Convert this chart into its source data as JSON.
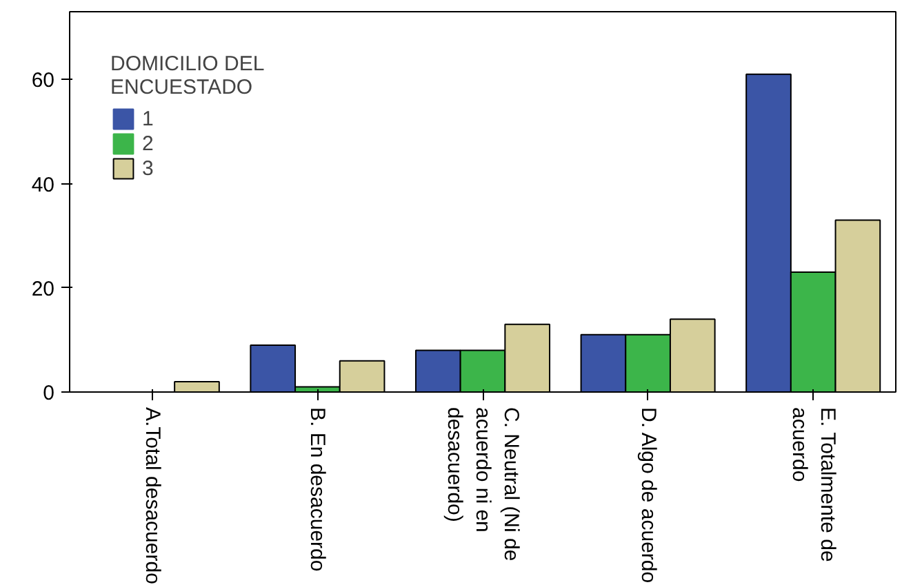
{
  "chart_data": {
    "type": "bar",
    "categories": [
      "A.Total desacuerdo",
      "B. En desacuerdo",
      "C. Neutral (Ni de acuerdo ni en desacuerdo)",
      "D. Algo de acuerdo",
      "E. Totalmente de acuerdo"
    ],
    "series": [
      {
        "name": "1",
        "color": "#3b55a6",
        "values": [
          0,
          9,
          8,
          11,
          61
        ]
      },
      {
        "name": "2",
        "color": "#3cb54a",
        "values": [
          0,
          1,
          8,
          11,
          23
        ]
      },
      {
        "name": "3",
        "color": "#d6cf9b",
        "values": [
          2,
          6,
          13,
          14,
          33
        ]
      }
    ],
    "legend_title": "DOMICILIO DEL ENCUESTADO",
    "legend": "top left",
    "ylim": [
      0,
      73
    ],
    "yticks": [
      0,
      20,
      40,
      60
    ],
    "grid": false
  }
}
